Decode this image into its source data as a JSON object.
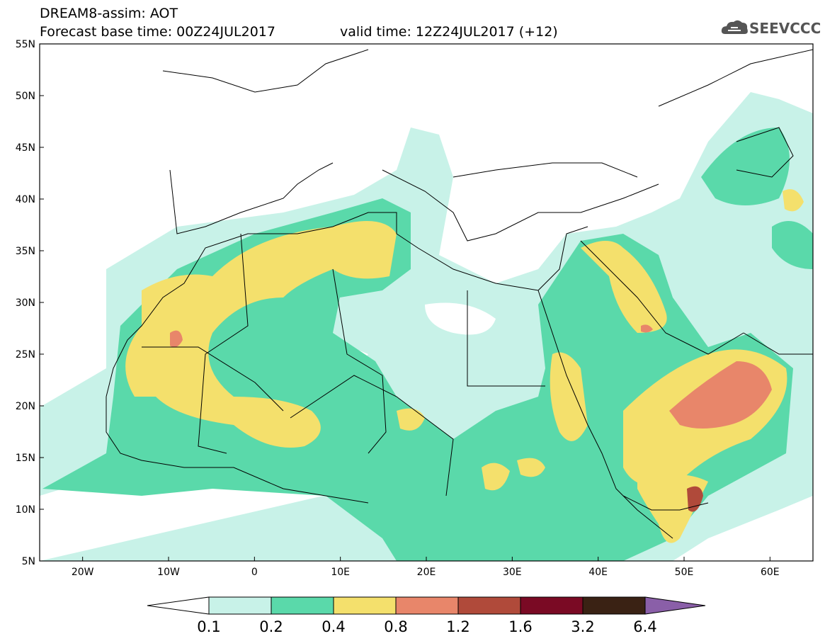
{
  "header": {
    "title": "DREAM8-assim: AOT",
    "base_time": "Forecast base time: 00Z24JUL2017",
    "valid_time": "valid time: 12Z24JUL2017 (+12)"
  },
  "logo": {
    "text": "SEEVCCC",
    "icon": "cloud-icon"
  },
  "map": {
    "lon_range": [
      -25,
      65
    ],
    "lat_range": [
      5,
      55
    ],
    "lon_ticks": [
      {
        "value": -20,
        "label": "20W"
      },
      {
        "value": -10,
        "label": "10W"
      },
      {
        "value": 0,
        "label": "0"
      },
      {
        "value": 10,
        "label": "10E"
      },
      {
        "value": 20,
        "label": "20E"
      },
      {
        "value": 30,
        "label": "30E"
      },
      {
        "value": 40,
        "label": "40E"
      },
      {
        "value": 50,
        "label": "50E"
      },
      {
        "value": 60,
        "label": "60E"
      }
    ],
    "lat_ticks": [
      {
        "value": 55,
        "label": "55N"
      },
      {
        "value": 50,
        "label": "50N"
      },
      {
        "value": 45,
        "label": "45N"
      },
      {
        "value": 40,
        "label": "40N"
      },
      {
        "value": 35,
        "label": "35N"
      },
      {
        "value": 30,
        "label": "30N"
      },
      {
        "value": 25,
        "label": "25N"
      },
      {
        "value": 20,
        "label": "20N"
      },
      {
        "value": 15,
        "label": "15N"
      },
      {
        "value": 10,
        "label": "10N"
      },
      {
        "value": 5,
        "label": "5N"
      }
    ]
  },
  "colorbar": {
    "labels": [
      "0.1",
      "0.2",
      "0.4",
      "0.8",
      "1.2",
      "1.6",
      "3.2",
      "6.4"
    ],
    "colors": [
      "#ffffff",
      "#c8f2e8",
      "#5ad9aa",
      "#f4e06c",
      "#e8866a",
      "#b04a3a",
      "#7a0a24",
      "#3a2214",
      "#8a5fa8"
    ]
  }
}
